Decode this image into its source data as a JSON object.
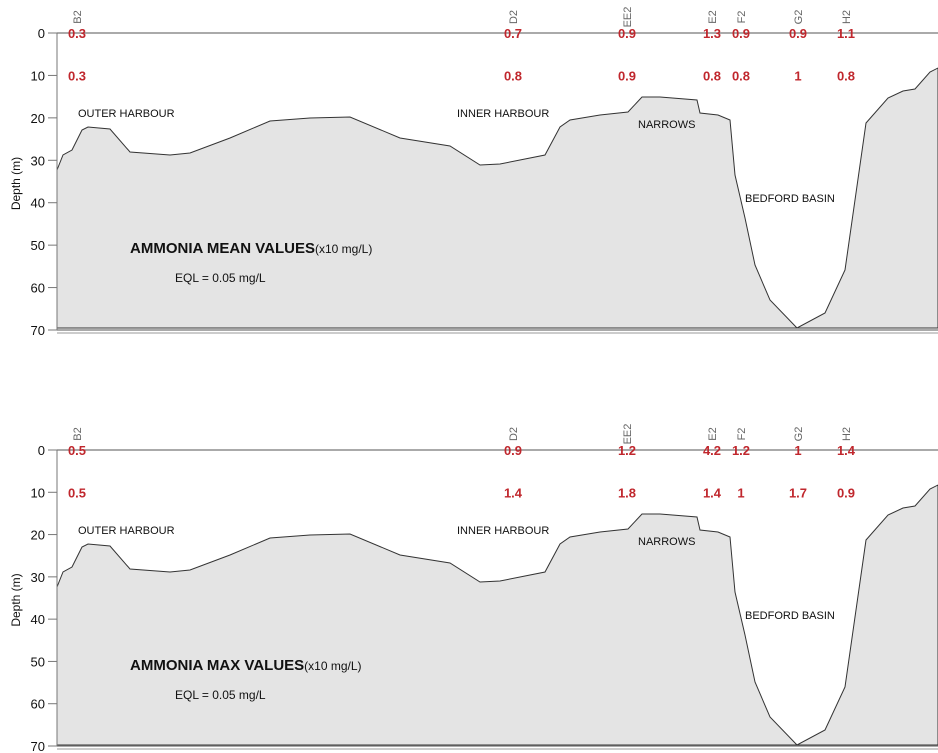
{
  "chart_data": [
    {
      "type": "profile",
      "title": "AMMONIA MEAN VALUES",
      "unit": "(x10  mg/L)",
      "note": "EQL = 0.05 mg/L",
      "ylabel": "Depth (m)",
      "ylim": [
        0,
        70
      ],
      "yticks": [
        0,
        10,
        20,
        30,
        40,
        50,
        60,
        70
      ],
      "categories": [
        "B2",
        "D2",
        "EE2",
        "E2",
        "F2",
        "G2",
        "H2"
      ],
      "series": [
        {
          "depth": 0,
          "color": "#c0272d",
          "values": [
            0.3,
            0.7,
            0.9,
            1.3,
            0.9,
            0.9,
            1.1
          ]
        },
        {
          "depth": 10,
          "color": "#c0272d",
          "values": [
            0.3,
            0.8,
            0.9,
            0.8,
            0.8,
            1,
            0.8
          ]
        }
      ],
      "annotations": [
        "OUTER HARBOUR",
        "INNER HARBOUR",
        "NARROWS",
        "BEDFORD BASIN"
      ]
    },
    {
      "type": "profile",
      "title": "AMMONIA MAX VALUES",
      "unit": "(x10  mg/L)",
      "note": "EQL = 0.05 mg/L",
      "ylabel": "Depth (m)",
      "ylim": [
        0,
        70
      ],
      "yticks": [
        0,
        10,
        20,
        30,
        40,
        50,
        60,
        70
      ],
      "categories": [
        "B2",
        "D2",
        "EE2",
        "E2",
        "F2",
        "G2",
        "H2"
      ],
      "series": [
        {
          "depth": 0,
          "color": "#c0272d",
          "values": [
            0.5,
            0.9,
            1.2,
            4.2,
            1.2,
            1,
            1.4
          ]
        },
        {
          "depth": 10,
          "color": "#c0272d",
          "values": [
            0.5,
            1.4,
            1.8,
            1.4,
            1,
            1.7,
            0.9
          ]
        }
      ],
      "annotations": [
        "OUTER HARBOUR",
        "INNER HARBOUR",
        "NARROWS",
        "BEDFORD BASIN"
      ]
    }
  ]
}
